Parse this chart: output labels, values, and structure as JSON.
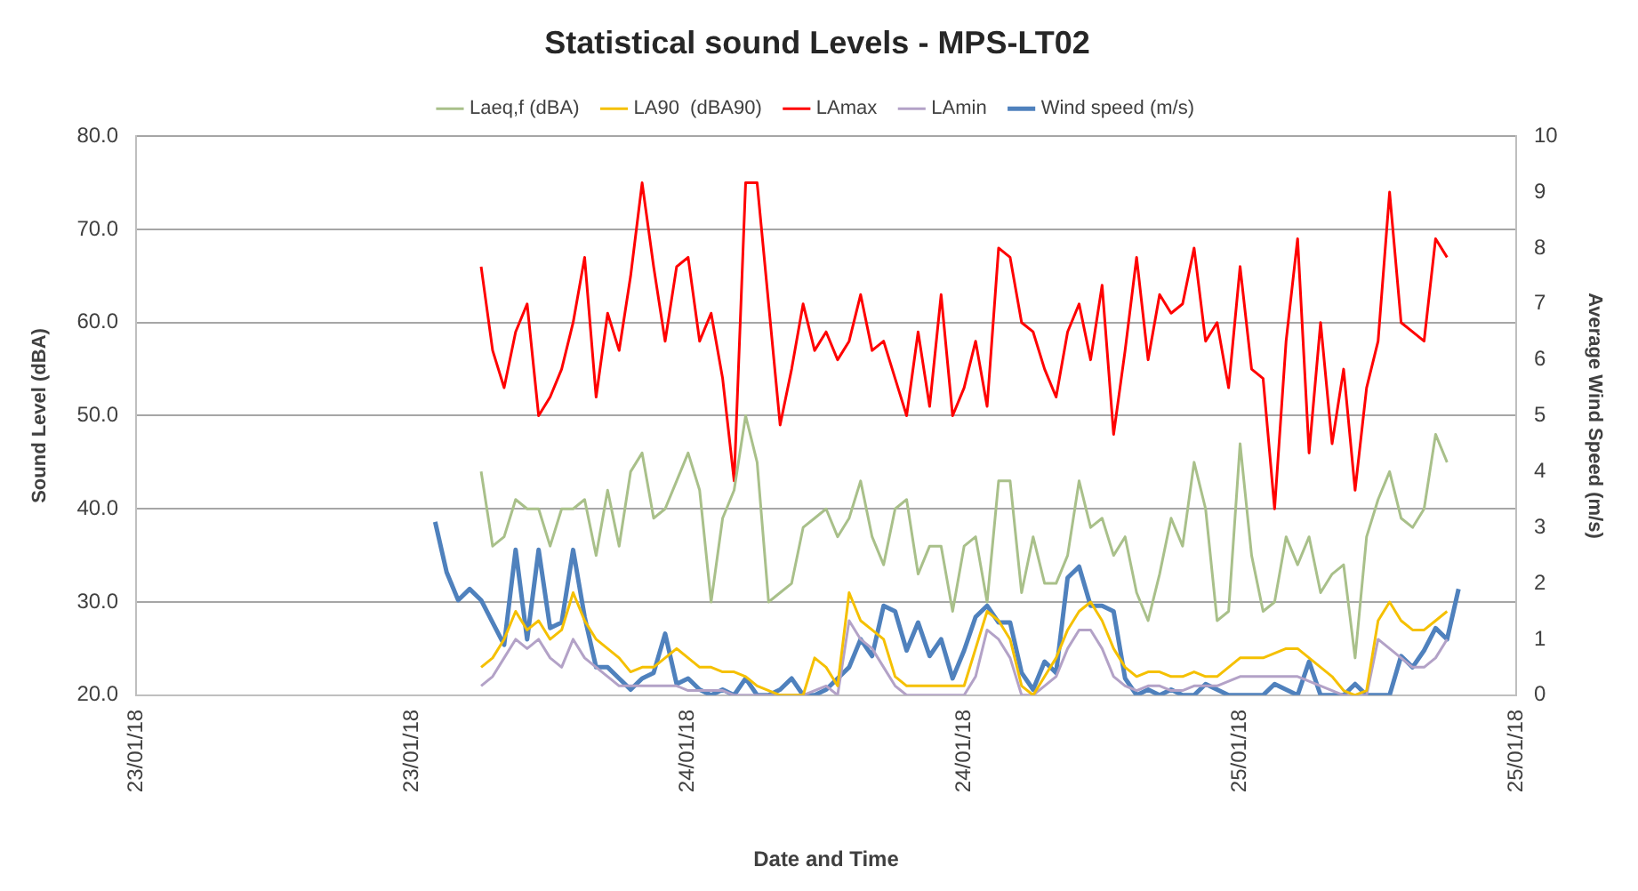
{
  "chart_data": {
    "type": "line",
    "title": "Statistical sound Levels - MPS-LT02",
    "xlabel": "Date and Time",
    "ylabel": "Sound Level (dBA)",
    "y2label": "Average Wind Speed (m/s)",
    "x": [
      "--01-23T13:00",
      "--01-23T13:30",
      "--01-23T14:00",
      "--01-23T14:30",
      "--01-23T15:00",
      "--01-23T15:30",
      "--01-23T16:00",
      "--01-23T16:30",
      "--01-23T17:00",
      "--01-23T17:30",
      "--01-23T18:00",
      "--01-23T18:30",
      "--01-23T19:00",
      "--01-23T19:30",
      "--01-23T20:00",
      "--01-23T20:30",
      "--01-23T21:00",
      "--01-23T21:30",
      "--01-23T22:00",
      "--01-23T22:30",
      "--01-23T23:00",
      "--01-23T23:30",
      "--01-24T00:00",
      "--01-24T00:30",
      "--01-24T01:00",
      "--01-24T01:30",
      "--01-24T02:00",
      "--01-24T02:30",
      "--01-24T03:00",
      "--01-24T03:30",
      "--01-24T04:00",
      "--01-24T04:30",
      "--01-24T05:00",
      "--01-24T05:30",
      "--01-24T06:00",
      "--01-24T06:30",
      "--01-24T07:00",
      "--01-24T07:30",
      "--01-24T08:00",
      "--01-24T08:30",
      "--01-24T09:00",
      "--01-24T09:30",
      "--01-24T10:00",
      "--01-24T10:30",
      "--01-24T11:00",
      "--01-24T11:30",
      "--01-24T12:00",
      "--01-24T12:30",
      "--01-24T13:00",
      "--01-24T13:30",
      "--01-24T14:00",
      "--01-24T14:30",
      "--01-24T15:00",
      "--01-24T15:30",
      "--01-24T16:00",
      "--01-24T16:30",
      "--01-24T17:00",
      "--01-24T17:30",
      "--01-24T18:00",
      "--01-24T18:30",
      "--01-24T19:00",
      "--01-24T19:30",
      "--01-24T20:00",
      "--01-24T20:30",
      "--01-24T21:00",
      "--01-24T21:30",
      "--01-24T22:00",
      "--01-24T22:30",
      "--01-24T23:00",
      "--01-24T23:30",
      "--01-25T00:00",
      "--01-25T00:30",
      "--01-25T01:00",
      "--01-25T01:30",
      "--01-25T02:00",
      "--01-25T02:30",
      "--01-25T03:00",
      "--01-25T03:30",
      "--01-25T04:00",
      "--01-25T04:30",
      "--01-25T05:00",
      "--01-25T05:30",
      "--01-25T06:00",
      "--01-25T06:30",
      "--01-25T07:00",
      "--01-25T07:30",
      "--01-25T08:00",
      "--01-25T08:30",
      "--01-25T09:00",
      "--01-25T09:30"
    ],
    "series": [
      {
        "name": "Laeq,f (dBA)",
        "color": "#a9c08a",
        "values": [
          null,
          null,
          null,
          null,
          44,
          36,
          37,
          41,
          40,
          40,
          36,
          40,
          40,
          41,
          35,
          42,
          36,
          44,
          46,
          39,
          40,
          43,
          46,
          42,
          30,
          39,
          42,
          50,
          45,
          30,
          31,
          32,
          38,
          39,
          40,
          37,
          39,
          43,
          37,
          34,
          40,
          41,
          33,
          36,
          36,
          29,
          36,
          37,
          30,
          43,
          43,
          31,
          37,
          32,
          32,
          35,
          43,
          38,
          39,
          35,
          37,
          31,
          28,
          33,
          39,
          36,
          45,
          40,
          28,
          29,
          47,
          35,
          29,
          30,
          37,
          34,
          37,
          31,
          33,
          34,
          24,
          37,
          41,
          44,
          39,
          38,
          40,
          48,
          45,
          null
        ]
      },
      {
        "name": "LA90  (dBA90)",
        "color": "#f5c000",
        "values": [
          null,
          null,
          null,
          null,
          23,
          24,
          26,
          29,
          27,
          28,
          26,
          27,
          31,
          28,
          26,
          25,
          24,
          22.5,
          23,
          23,
          24,
          25,
          24,
          23,
          23,
          22.5,
          22.5,
          22,
          21,
          20.5,
          20,
          20,
          20,
          24,
          23,
          21,
          31,
          28,
          27,
          26,
          22,
          21,
          21,
          21,
          21,
          21,
          21,
          25,
          29,
          28,
          26,
          21,
          20,
          22,
          24,
          27,
          29,
          30,
          28,
          25,
          23,
          22,
          22.5,
          22.5,
          22,
          22,
          22.5,
          22,
          22,
          23,
          24,
          24,
          24,
          24.5,
          25,
          25,
          24,
          23,
          22,
          20.5,
          20,
          20.5,
          28,
          30,
          28,
          27,
          27,
          28,
          29,
          null
        ]
      },
      {
        "name": "LAmax",
        "color": "#ff0000",
        "values": [
          null,
          null,
          null,
          null,
          66,
          57,
          53,
          59,
          62,
          50,
          52,
          55,
          60,
          67,
          52,
          61,
          57,
          65,
          75,
          66,
          58,
          66,
          67,
          58,
          61,
          54,
          43,
          75,
          75,
          62,
          49,
          55,
          62,
          57,
          59,
          56,
          58,
          63,
          57,
          58,
          54,
          50,
          59,
          51,
          63,
          50,
          53,
          58,
          51,
          68,
          67,
          60,
          59,
          55,
          52,
          59,
          62,
          56,
          64,
          48,
          57,
          67,
          56,
          63,
          61,
          62,
          68,
          58,
          60,
          53,
          66,
          55,
          54,
          40,
          58,
          69,
          46,
          60,
          47,
          55,
          42,
          53,
          58,
          74,
          60,
          59,
          58,
          69,
          67,
          null
        ]
      },
      {
        "name": "LAmin",
        "color": "#b3a2c7",
        "values": [
          null,
          null,
          null,
          null,
          21,
          22,
          24,
          26,
          25,
          26,
          24,
          23,
          26,
          24,
          23,
          22,
          21,
          21,
          21,
          21,
          21,
          21,
          20.5,
          20.5,
          20.5,
          20.5,
          20,
          20,
          20,
          20,
          20,
          20,
          20,
          20.5,
          21,
          20,
          28,
          26,
          25,
          23,
          21,
          20,
          20,
          20,
          20,
          20,
          20,
          22,
          27,
          26,
          24,
          20,
          20,
          21,
          22,
          25,
          27,
          27,
          25,
          22,
          21,
          20.5,
          21,
          21,
          20.5,
          20.5,
          21,
          21,
          21,
          21.5,
          22,
          22,
          22,
          22,
          22,
          22,
          21.5,
          21,
          20.5,
          20,
          20,
          20,
          26,
          25,
          24,
          23,
          23,
          24,
          26,
          null
        ]
      },
      {
        "name": "Wind speed (m/s)",
        "color": "#4f81bd",
        "axis": "y2",
        "values": [
          3.1,
          2.2,
          1.7,
          1.9,
          1.7,
          1.3,
          0.9,
          2.6,
          1.0,
          2.6,
          1.2,
          1.3,
          2.6,
          1.4,
          0.5,
          0.5,
          0.3,
          0.1,
          0.3,
          0.4,
          1.1,
          0.2,
          0.3,
          0.1,
          0,
          0.1,
          0,
          0.3,
          0,
          0,
          0.1,
          0.3,
          0,
          0,
          0.1,
          0.3,
          0.5,
          1.0,
          0.7,
          1.6,
          1.5,
          0.8,
          1.3,
          0.7,
          1.0,
          0.3,
          0.8,
          1.4,
          1.6,
          1.3,
          1.3,
          0.4,
          0.1,
          0.6,
          0.4,
          2.1,
          2.3,
          1.6,
          1.6,
          1.5,
          0.3,
          0,
          0.1,
          0,
          0.1,
          0,
          0,
          0.2,
          0.1,
          0,
          0,
          0,
          0,
          0.2,
          0.1,
          0,
          0.6,
          0,
          0,
          0,
          0.2,
          0,
          0,
          0,
          0.7,
          0.5,
          0.8,
          1.2,
          1.0,
          1.9
        ]
      }
    ],
    "xlim": [
      "--01-23T00:00",
      "--01-25T12:00"
    ],
    "xticks": [
      {
        "value": "--01-23T00:00",
        "label": "23/01/18"
      },
      {
        "value": "--01-23T12:00",
        "label": "23/01/18"
      },
      {
        "value": "--01-24T00:00",
        "label": "24/01/18"
      },
      {
        "value": "--01-24T12:00",
        "label": "24/01/18"
      },
      {
        "value": "--01-25T00:00",
        "label": "25/01/18"
      },
      {
        "value": "--01-25T12:00",
        "label": "25/01/18"
      }
    ],
    "ylim": [
      20,
      80
    ],
    "yticks": [
      {
        "value": 20,
        "label": "20.0"
      },
      {
        "value": 30,
        "label": "30.0"
      },
      {
        "value": 40,
        "label": "40.0"
      },
      {
        "value": 50,
        "label": "50.0"
      },
      {
        "value": 60,
        "label": "60.0"
      },
      {
        "value": 70,
        "label": "70.0"
      },
      {
        "value": 80,
        "label": "80.0"
      }
    ],
    "y2lim": [
      0,
      10
    ],
    "y2ticks": [
      0,
      1,
      2,
      3,
      4,
      5,
      6,
      7,
      8,
      9,
      10
    ],
    "grid": "y",
    "legend": "top",
    "marker": "none"
  }
}
